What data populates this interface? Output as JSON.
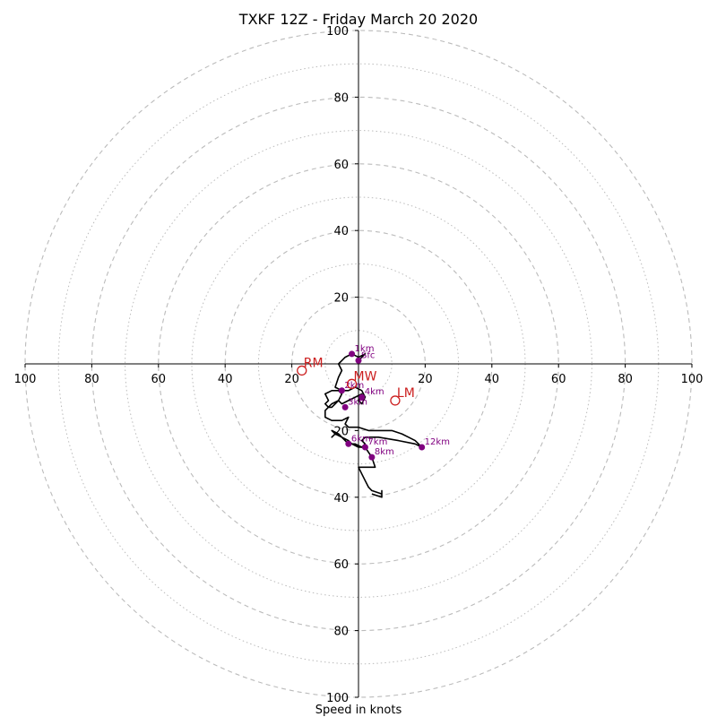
{
  "chart_data": {
    "type": "scatter",
    "subtype": "hodograph",
    "title": "TXKF 12Z - Friday March 20 2020",
    "xlabel": "Speed in knots",
    "ylabel": "",
    "xlim": [
      -100,
      100
    ],
    "ylim": [
      -100,
      100
    ],
    "ring_major": [
      20,
      40,
      60,
      80,
      100
    ],
    "ring_minor": [
      10,
      30,
      50,
      70,
      90
    ],
    "x_ticks": [
      "100",
      "80",
      "60",
      "40",
      "20",
      "20",
      "40",
      "60",
      "80",
      "100"
    ],
    "y_ticks": [
      "100",
      "80",
      "60",
      "40",
      "20",
      "20",
      "40",
      "60",
      "80",
      "100"
    ],
    "grid": true,
    "colors": {
      "trace": "#000000",
      "height_markers": "#800080",
      "storm_motion": "#cc1f1f",
      "rings": "#bbbbbb"
    },
    "trace": [
      [
        0,
        1
      ],
      [
        2,
        3
      ],
      [
        0,
        2
      ],
      [
        -2,
        3
      ],
      [
        -4,
        2
      ],
      [
        -6,
        0
      ],
      [
        -5,
        -2
      ],
      [
        -6,
        -4
      ],
      [
        -7,
        -7
      ],
      [
        -5,
        -8
      ],
      [
        -3,
        -8
      ],
      [
        -1,
        -7
      ],
      [
        1,
        -8
      ],
      [
        2,
        -10
      ],
      [
        1,
        -12
      ],
      [
        0,
        -11
      ],
      [
        1,
        -9
      ],
      [
        -1,
        -10
      ],
      [
        -3,
        -11
      ],
      [
        -5,
        -12
      ],
      [
        -6,
        -11
      ],
      [
        -8,
        -13
      ],
      [
        -9,
        -13
      ],
      [
        -10,
        -12
      ],
      [
        -9,
        -11
      ],
      [
        -10,
        -9
      ],
      [
        -8,
        -8
      ],
      [
        -6,
        -8
      ],
      [
        -5,
        -9
      ],
      [
        -6,
        -11
      ],
      [
        -8,
        -12
      ],
      [
        -10,
        -14
      ],
      [
        -10,
        -16
      ],
      [
        -8,
        -17
      ],
      [
        -5,
        -17
      ],
      [
        -3,
        -16
      ],
      [
        -4,
        -18
      ],
      [
        -3,
        -19
      ],
      [
        0,
        -19
      ],
      [
        3,
        -20
      ],
      [
        8,
        -20
      ],
      [
        10,
        -20
      ],
      [
        13,
        -21
      ],
      [
        15,
        -22
      ],
      [
        17,
        -23
      ],
      [
        18,
        -24
      ],
      [
        19,
        -25
      ],
      [
        19,
        -25
      ],
      [
        17,
        -24
      ],
      [
        12,
        -23
      ],
      [
        6,
        -22
      ],
      [
        2,
        -22
      ],
      [
        1,
        -23
      ],
      [
        2,
        -24
      ],
      [
        1,
        -25
      ],
      [
        -1,
        -24
      ],
      [
        -3,
        -24
      ],
      [
        -6,
        -21
      ],
      [
        -8,
        -20
      ],
      [
        -7,
        -21
      ],
      [
        -8,
        -22
      ],
      [
        -7,
        -21
      ],
      [
        -3,
        -23
      ],
      [
        -2,
        -24
      ],
      [
        0,
        -25
      ],
      [
        2,
        -25
      ],
      [
        4,
        -28
      ],
      [
        5,
        -31
      ],
      [
        3,
        -31
      ],
      [
        0,
        -31
      ],
      [
        1,
        -33
      ],
      [
        2,
        -35
      ],
      [
        3,
        -37
      ],
      [
        4,
        -38
      ],
      [
        7,
        -39
      ],
      [
        7,
        -38
      ],
      [
        7,
        -40
      ],
      [
        4,
        -39
      ]
    ],
    "heights": [
      {
        "label": "Sfc",
        "x": 0,
        "y": 1
      },
      {
        "label": "1km",
        "x": -2,
        "y": 3
      },
      {
        "label": "2km",
        "x": -5,
        "y": -8
      },
      {
        "label": "3km",
        "x": -4,
        "y": -13
      },
      {
        "label": "4km",
        "x": 1,
        "y": -10
      },
      {
        "label": "6km",
        "x": -3,
        "y": -24
      },
      {
        "label": "7km",
        "x": 2,
        "y": -25
      },
      {
        "label": "8km",
        "x": 4,
        "y": -28
      },
      {
        "label": "12km",
        "x": 19,
        "y": -25
      }
    ],
    "storm_motion": [
      {
        "label": "RM",
        "x": -17,
        "y": -2
      },
      {
        "label": "LM",
        "x": 11,
        "y": -11
      },
      {
        "label": "MW",
        "x": -2,
        "y": -6
      }
    ]
  }
}
